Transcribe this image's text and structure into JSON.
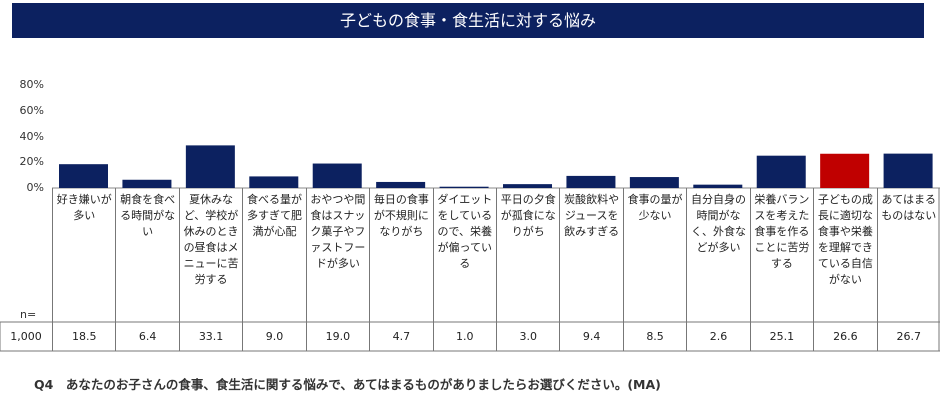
{
  "title": "子どもの食事・食生活に対する悩み",
  "n_label": "n=",
  "n_value": "1,000",
  "question": "Q4　あなたのお子さんの食事、食生活に関する悩みで、あてはまるものがありましたらお選びください。(MA)",
  "colors": {
    "bar": "#0c2160",
    "highlight": "#c00000",
    "title_bg": "#0c2160"
  },
  "chart_data": {
    "type": "bar",
    "ylim": [
      0,
      80
    ],
    "yticks": [
      "0%",
      "20%",
      "40%",
      "60%",
      "80%"
    ],
    "categories": [
      "好き嫌いが多い",
      "朝食を食べる時間がない",
      "夏休みなど、学校が休みのときの昼食はメニューに苦労する",
      "食べる量が多すぎて肥満が心配",
      "おやつや間食はスナック菓子やファストフードが多い",
      "毎日の食事が不規則になりがち",
      "ダイエットをしているので、栄養が偏っている",
      "平日の夕食が孤食になりがち",
      "炭酸飲料やジュースを飲みすぎる",
      "食事の量が少ない",
      "自分自身の時間がなく、外食などが多い",
      "栄養バランスを考えた食事を作ることに苦労する",
      "子どもの成長に適切な食事や栄養を理解できている自信がない",
      "あてはまるものはない"
    ],
    "values": [
      18.5,
      6.4,
      33.1,
      9.0,
      19.0,
      4.7,
      1.0,
      3.0,
      9.4,
      8.5,
      2.6,
      25.1,
      26.6,
      26.7
    ],
    "value_labels": [
      "18.5",
      "6.4",
      "33.1",
      "9.0",
      "19.0",
      "4.7",
      "1.0",
      "3.0",
      "9.4",
      "8.5",
      "2.6",
      "25.1",
      "26.6",
      "26.7"
    ],
    "highlight_index": 12
  }
}
